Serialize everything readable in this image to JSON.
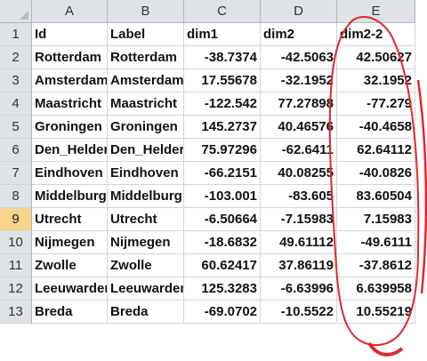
{
  "columns": [
    "A",
    "B",
    "C",
    "D",
    "E"
  ],
  "active_row": "9",
  "rows": [
    {
      "n": "1",
      "id": "Id",
      "label": "Label",
      "dim1": "dim1",
      "dim2": "dim2",
      "dim2n": "dim2-2"
    },
    {
      "n": "2",
      "id": "Rotterdam",
      "label": "Rotterdam",
      "dim1": "-38.7374",
      "dim2": "-42.5063",
      "dim2n": "42.50627"
    },
    {
      "n": "3",
      "id": "Amsterdam",
      "label": "Amsterdam",
      "dim1": "17.55678",
      "dim2": "-32.1952",
      "dim2n": "32.1952"
    },
    {
      "n": "4",
      "id": "Maastricht",
      "label": "Maastricht",
      "dim1": "-122.542",
      "dim2": "77.27898",
      "dim2n": "-77.279"
    },
    {
      "n": "5",
      "id": "Groningen",
      "label": "Groningen",
      "dim1": "145.2737",
      "dim2": "40.46576",
      "dim2n": "-40.4658"
    },
    {
      "n": "6",
      "id": "Den_Helder",
      "label": "Den_Helder",
      "dim1": "75.97296",
      "dim2": "-62.6411",
      "dim2n": "62.64112"
    },
    {
      "n": "7",
      "id": "Eindhoven",
      "label": "Eindhoven",
      "dim1": "-66.2151",
      "dim2": "40.08255",
      "dim2n": "-40.0826"
    },
    {
      "n": "8",
      "id": "Middelburg",
      "label": "Middelburg",
      "dim1": "-103.001",
      "dim2": "-83.605",
      "dim2n": "83.60504"
    },
    {
      "n": "9",
      "id": "Utrecht",
      "label": "Utrecht",
      "dim1": "-6.50664",
      "dim2": "-7.15983",
      "dim2n": "7.15983"
    },
    {
      "n": "10",
      "id": "Nijmegen",
      "label": "Nijmegen",
      "dim1": "-18.6832",
      "dim2": "49.61112",
      "dim2n": "-49.6111"
    },
    {
      "n": "11",
      "id": "Zwolle",
      "label": "Zwolle",
      "dim1": "60.62417",
      "dim2": "37.86119",
      "dim2n": "-37.8612"
    },
    {
      "n": "12",
      "id": "Leeuwarden",
      "label": "Leeuwarden",
      "dim1": "125.3283",
      "dim2": "-6.63996",
      "dim2n": "6.639958"
    },
    {
      "n": "13",
      "id": "Breda",
      "label": "Breda",
      "dim1": "-69.0702",
      "dim2": "-10.5522",
      "dim2n": "10.55219"
    }
  ],
  "annotation_color": "#e0282e"
}
